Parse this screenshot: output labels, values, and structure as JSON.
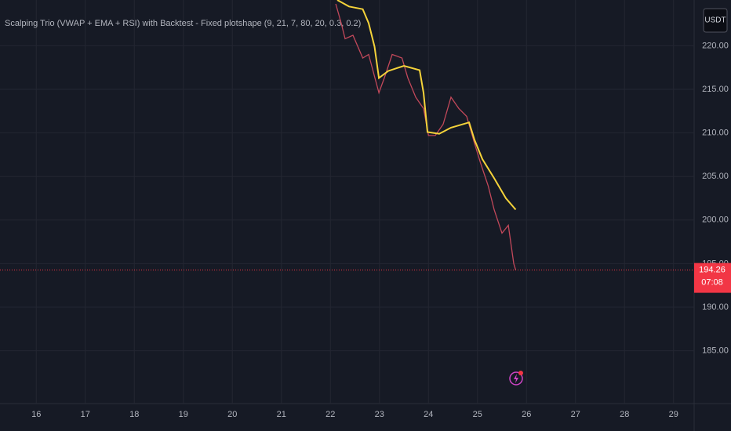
{
  "chart_data": {
    "type": "line",
    "title": "Scalping Trio (VWAP + EMA + RSI) with Backtest - Fixed plotshape (9, 21, 7, 80, 20, 0.3, 0.2)",
    "currency": "USDT",
    "xlim": [
      15.26,
      29.42
    ],
    "xticks": [
      16,
      17,
      18,
      19,
      20,
      21,
      22,
      23,
      24,
      25,
      26,
      27,
      28,
      29
    ],
    "ylim": [
      178.94,
      225.25
    ],
    "yticks": [
      {
        "value": 185,
        "label": "185.00"
      },
      {
        "value": 190,
        "label": "190.00"
      },
      {
        "value": 195,
        "label": "195.00"
      },
      {
        "value": 200,
        "label": "200.00"
      },
      {
        "value": 205,
        "label": "205.00"
      },
      {
        "value": 210,
        "label": "210.00"
      },
      {
        "value": 215,
        "label": "215.00"
      },
      {
        "value": 220,
        "label": "220.00"
      }
    ],
    "grid": true,
    "last_price": 194.26,
    "countdown": "07:08",
    "series": [
      {
        "color": "#c2485a",
        "x": [
          22.11,
          22.22,
          22.3,
          22.46,
          22.66,
          22.78,
          22.99,
          23.1,
          23.26,
          23.46,
          23.58,
          23.74,
          23.9,
          24.0,
          24.14,
          24.3,
          24.46,
          24.62,
          24.78,
          24.94,
          25.06,
          25.22,
          25.34,
          25.5,
          25.63,
          25.74,
          25.78
        ],
        "values": [
          224.8,
          222.6,
          220.8,
          221.2,
          218.6,
          219.0,
          214.6,
          216.3,
          219.0,
          218.6,
          216.3,
          214.1,
          212.8,
          209.7,
          209.7,
          211.0,
          214.1,
          212.8,
          211.9,
          208.8,
          206.6,
          203.9,
          201.2,
          198.5,
          199.4,
          195.0,
          194.26
        ]
      },
      {
        "color": "#f5d33a",
        "x": [
          22.14,
          22.38,
          22.66,
          22.78,
          22.9,
          22.99,
          23.18,
          23.5,
          23.82,
          23.9,
          23.98,
          24.22,
          24.46,
          24.83,
          24.94,
          25.1,
          25.34,
          25.58,
          25.78
        ],
        "values": [
          225.25,
          224.5,
          224.2,
          222.6,
          219.9,
          216.3,
          217.1,
          217.7,
          217.2,
          214.6,
          210.1,
          209.9,
          210.6,
          211.2,
          209.2,
          207.0,
          204.8,
          202.5,
          201.2
        ]
      }
    ]
  }
}
